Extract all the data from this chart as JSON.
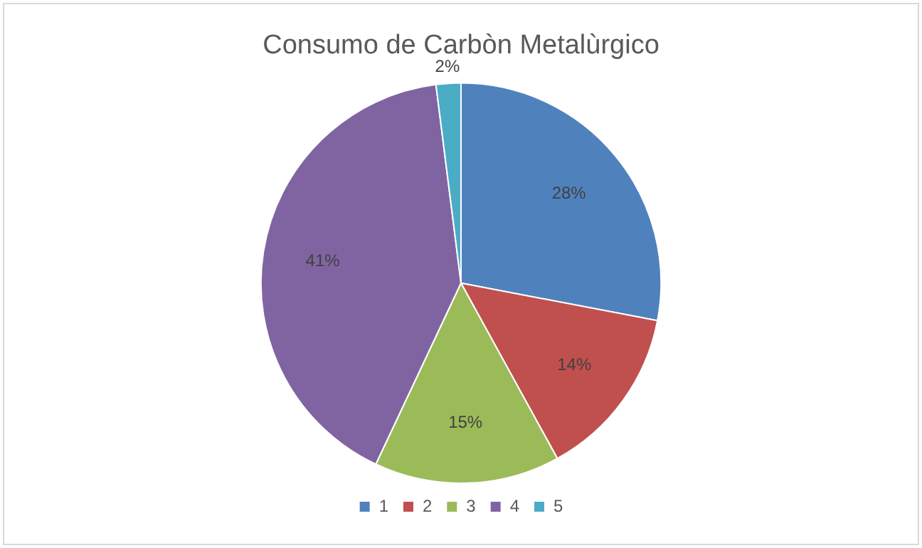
{
  "chart_data": {
    "type": "pie",
    "title": "Consumo de Carbòn Metalùrgico",
    "categories": [
      "1",
      "2",
      "3",
      "4",
      "5"
    ],
    "values": [
      28,
      14,
      15,
      41,
      2
    ],
    "colors": [
      "#4f81bd",
      "#c0504d",
      "#9bbb59",
      "#8064a2",
      "#4bacc6"
    ],
    "value_labels": [
      "28%",
      "14%",
      "15%",
      "41%",
      "2%"
    ],
    "legend": "bottom"
  }
}
